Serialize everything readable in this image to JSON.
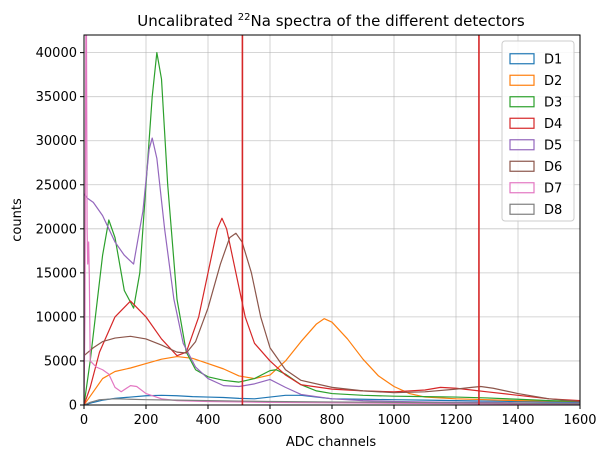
{
  "chart_data": {
    "type": "line",
    "title": {
      "prefix": "Uncalibrated ",
      "superscript": "22",
      "suffix": "Na spectra of the different detectors"
    },
    "xlabel": "ADC channels",
    "ylabel": "counts",
    "xlim": [
      0,
      1600
    ],
    "ylim": [
      0,
      42000
    ],
    "xticks": [
      0,
      200,
      400,
      600,
      800,
      1000,
      1200,
      1400,
      1600
    ],
    "yticks": [
      0,
      5000,
      10000,
      15000,
      20000,
      25000,
      30000,
      35000,
      40000
    ],
    "grid": true,
    "legend_position": "top-right",
    "vertical_lines": [
      {
        "x": 511,
        "color": "#d62728"
      },
      {
        "x": 1274,
        "color": "#d62728"
      }
    ],
    "series": [
      {
        "name": "D1",
        "color": "#1f77b4",
        "points": [
          [
            0,
            0
          ],
          [
            10,
            100
          ],
          [
            30,
            300
          ],
          [
            60,
            550
          ],
          [
            100,
            750
          ],
          [
            150,
            900
          ],
          [
            200,
            1050
          ],
          [
            250,
            1100
          ],
          [
            300,
            1050
          ],
          [
            350,
            950
          ],
          [
            400,
            900
          ],
          [
            450,
            850
          ],
          [
            500,
            750
          ],
          [
            550,
            700
          ],
          [
            600,
            900
          ],
          [
            650,
            1100
          ],
          [
            700,
            1100
          ],
          [
            750,
            900
          ],
          [
            800,
            700
          ],
          [
            900,
            650
          ],
          [
            1000,
            600
          ],
          [
            1100,
            550
          ],
          [
            1200,
            500
          ],
          [
            1300,
            450
          ],
          [
            1400,
            400
          ],
          [
            1500,
            350
          ],
          [
            1600,
            300
          ]
        ]
      },
      {
        "name": "D2",
        "color": "#ff7f0e",
        "points": [
          [
            0,
            0
          ],
          [
            30,
            1500
          ],
          [
            60,
            3000
          ],
          [
            100,
            3800
          ],
          [
            150,
            4200
          ],
          [
            200,
            4700
          ],
          [
            250,
            5200
          ],
          [
            300,
            5500
          ],
          [
            350,
            5300
          ],
          [
            400,
            4700
          ],
          [
            450,
            4100
          ],
          [
            500,
            3300
          ],
          [
            550,
            3000
          ],
          [
            600,
            3400
          ],
          [
            650,
            5000
          ],
          [
            700,
            7200
          ],
          [
            750,
            9200
          ],
          [
            775,
            9800
          ],
          [
            800,
            9400
          ],
          [
            850,
            7500
          ],
          [
            900,
            5200
          ],
          [
            950,
            3300
          ],
          [
            1000,
            2100
          ],
          [
            1050,
            1300
          ],
          [
            1100,
            900
          ],
          [
            1200,
            700
          ],
          [
            1300,
            600
          ],
          [
            1400,
            500
          ],
          [
            1500,
            450
          ],
          [
            1600,
            400
          ]
        ]
      },
      {
        "name": "D3",
        "color": "#2ca02c",
        "points": [
          [
            0,
            0
          ],
          [
            20,
            5000
          ],
          [
            40,
            11000
          ],
          [
            60,
            17000
          ],
          [
            80,
            21000
          ],
          [
            100,
            19000
          ],
          [
            130,
            13000
          ],
          [
            160,
            11000
          ],
          [
            180,
            15000
          ],
          [
            200,
            25000
          ],
          [
            220,
            35000
          ],
          [
            235,
            40000
          ],
          [
            250,
            37000
          ],
          [
            270,
            25000
          ],
          [
            300,
            12000
          ],
          [
            330,
            6000
          ],
          [
            360,
            4000
          ],
          [
            400,
            3200
          ],
          [
            450,
            2800
          ],
          [
            500,
            2600
          ],
          [
            550,
            3000
          ],
          [
            600,
            3900
          ],
          [
            620,
            4000
          ],
          [
            650,
            3500
          ],
          [
            700,
            2300
          ],
          [
            750,
            1600
          ],
          [
            800,
            1300
          ],
          [
            900,
            1100
          ],
          [
            1000,
            1000
          ],
          [
            1100,
            950
          ],
          [
            1200,
            900
          ],
          [
            1300,
            800
          ],
          [
            1400,
            650
          ],
          [
            1500,
            500
          ],
          [
            1600,
            400
          ]
        ]
      },
      {
        "name": "D4",
        "color": "#d62728",
        "points": [
          [
            0,
            0
          ],
          [
            20,
            2000
          ],
          [
            50,
            6000
          ],
          [
            100,
            10000
          ],
          [
            150,
            11800
          ],
          [
            200,
            10000
          ],
          [
            250,
            7500
          ],
          [
            300,
            5600
          ],
          [
            330,
            6000
          ],
          [
            370,
            10000
          ],
          [
            400,
            15000
          ],
          [
            430,
            20000
          ],
          [
            445,
            21200
          ],
          [
            460,
            20000
          ],
          [
            490,
            15000
          ],
          [
            520,
            10000
          ],
          [
            550,
            7000
          ],
          [
            600,
            5000
          ],
          [
            650,
            3400
          ],
          [
            700,
            2300
          ],
          [
            800,
            1800
          ],
          [
            900,
            1600
          ],
          [
            1000,
            1500
          ],
          [
            1100,
            1700
          ],
          [
            1150,
            2000
          ],
          [
            1200,
            1900
          ],
          [
            1250,
            1700
          ],
          [
            1300,
            1500
          ],
          [
            1400,
            1100
          ],
          [
            1500,
            700
          ],
          [
            1600,
            500
          ]
        ]
      },
      {
        "name": "D5",
        "color": "#9467bd",
        "points": [
          [
            0,
            24000
          ],
          [
            10,
            23500
          ],
          [
            30,
            23000
          ],
          [
            60,
            21500
          ],
          [
            80,
            20000
          ],
          [
            100,
            18500
          ],
          [
            130,
            17000
          ],
          [
            160,
            16000
          ],
          [
            190,
            22000
          ],
          [
            210,
            29000
          ],
          [
            220,
            30300
          ],
          [
            235,
            28000
          ],
          [
            260,
            20000
          ],
          [
            290,
            12000
          ],
          [
            320,
            7000
          ],
          [
            360,
            4300
          ],
          [
            400,
            3000
          ],
          [
            450,
            2200
          ],
          [
            500,
            2100
          ],
          [
            550,
            2400
          ],
          [
            600,
            2900
          ],
          [
            650,
            2000
          ],
          [
            700,
            1200
          ],
          [
            800,
            700
          ],
          [
            900,
            500
          ],
          [
            1000,
            400
          ],
          [
            1100,
            350
          ],
          [
            1200,
            300
          ],
          [
            1300,
            300
          ],
          [
            1400,
            250
          ],
          [
            1500,
            200
          ],
          [
            1600,
            200
          ]
        ]
      },
      {
        "name": "D6",
        "color": "#8c564b",
        "points": [
          [
            0,
            5600
          ],
          [
            30,
            6500
          ],
          [
            60,
            7200
          ],
          [
            100,
            7600
          ],
          [
            150,
            7800
          ],
          [
            200,
            7500
          ],
          [
            250,
            6800
          ],
          [
            300,
            6000
          ],
          [
            330,
            5900
          ],
          [
            360,
            7200
          ],
          [
            400,
            11000
          ],
          [
            440,
            16000
          ],
          [
            470,
            19000
          ],
          [
            490,
            19500
          ],
          [
            510,
            18500
          ],
          [
            540,
            15000
          ],
          [
            570,
            10000
          ],
          [
            600,
            6500
          ],
          [
            650,
            4000
          ],
          [
            700,
            2800
          ],
          [
            800,
            2000
          ],
          [
            900,
            1600
          ],
          [
            1000,
            1400
          ],
          [
            1100,
            1500
          ],
          [
            1200,
            1800
          ],
          [
            1250,
            2000
          ],
          [
            1280,
            2100
          ],
          [
            1320,
            1900
          ],
          [
            1400,
            1300
          ],
          [
            1500,
            700
          ],
          [
            1600,
            400
          ]
        ]
      },
      {
        "name": "D7",
        "color": "#e377c2",
        "points": [
          [
            0,
            0
          ],
          [
            3,
            10000
          ],
          [
            6,
            42000
          ],
          [
            8,
            42000
          ],
          [
            10,
            20000
          ],
          [
            12,
            16000
          ],
          [
            15,
            18500
          ],
          [
            17,
            15000
          ],
          [
            20,
            5000
          ],
          [
            40,
            4300
          ],
          [
            60,
            4000
          ],
          [
            80,
            3500
          ],
          [
            100,
            2000
          ],
          [
            120,
            1500
          ],
          [
            150,
            2200
          ],
          [
            170,
            2100
          ],
          [
            200,
            1300
          ],
          [
            250,
            700
          ],
          [
            300,
            500
          ],
          [
            400,
            400
          ],
          [
            500,
            350
          ],
          [
            600,
            300
          ],
          [
            800,
            250
          ],
          [
            1000,
            200
          ],
          [
            1200,
            150
          ],
          [
            1400,
            120
          ],
          [
            1600,
            100
          ]
        ]
      },
      {
        "name": "D8",
        "color": "#7f7f7f",
        "points": [
          [
            0,
            0
          ],
          [
            20,
            300
          ],
          [
            50,
            600
          ],
          [
            100,
            700
          ],
          [
            150,
            650
          ],
          [
            200,
            600
          ],
          [
            300,
            550
          ],
          [
            400,
            500
          ],
          [
            500,
            450
          ],
          [
            600,
            400
          ],
          [
            800,
            350
          ],
          [
            1000,
            300
          ],
          [
            1200,
            250
          ],
          [
            1400,
            200
          ],
          [
            1600,
            150
          ]
        ]
      }
    ]
  }
}
